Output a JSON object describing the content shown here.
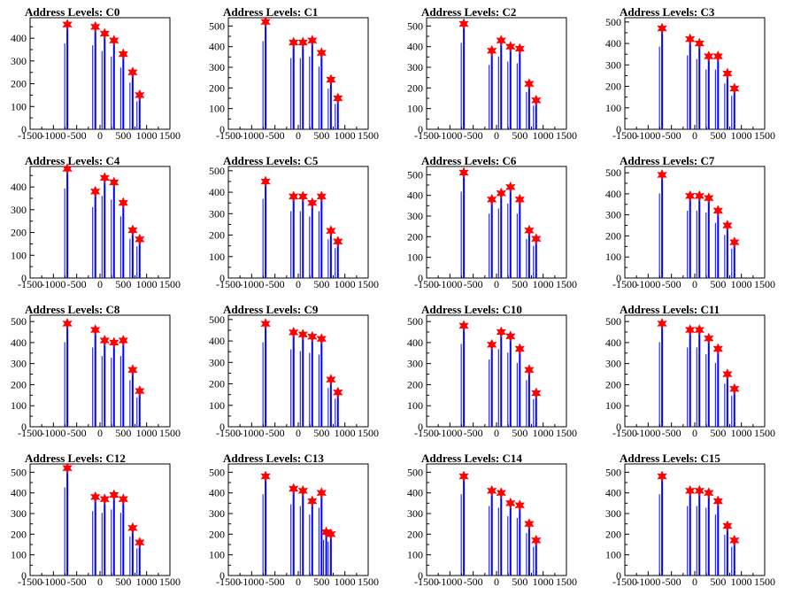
{
  "figure": {
    "background": "#ffffff"
  },
  "style": {
    "line_color": "#0000ff",
    "marker_color": "#ff0000",
    "axis_color": "#000000"
  },
  "chart_data": [
    {
      "type": "line",
      "title": "Address Levels: C0",
      "xlim": [
        -1500,
        1500
      ],
      "ylim": [
        0,
        490
      ],
      "xticks": [
        "-1500",
        "-1000",
        "-500",
        "0",
        "500",
        "1000",
        "1500"
      ],
      "yticks": [
        "0",
        "100",
        "200",
        "300",
        "400"
      ],
      "x": [
        -700,
        -100,
        100,
        300,
        500,
        700,
        850
      ],
      "line_values": [
        460,
        450,
        420,
        390,
        330,
        250,
        150
      ],
      "marker_values": [
        460,
        450,
        420,
        390,
        330,
        250,
        150
      ]
    },
    {
      "type": "line",
      "title": "Address Levels: C1",
      "xlim": [
        -1500,
        1500
      ],
      "ylim": [
        0,
        540
      ],
      "xticks": [
        "-1500",
        "-1000",
        "-500",
        "0",
        "500",
        "1000",
        "1500"
      ],
      "yticks": [
        "0",
        "100",
        "200",
        "300",
        "400",
        "500"
      ],
      "x": [
        -700,
        -100,
        100,
        300,
        500,
        700,
        850
      ],
      "line_values": [
        520,
        420,
        420,
        430,
        370,
        240,
        150
      ],
      "marker_values": [
        520,
        420,
        420,
        430,
        370,
        240,
        150
      ]
    },
    {
      "type": "line",
      "title": "Address Levels: C2",
      "xlim": [
        -1500,
        1500
      ],
      "ylim": [
        0,
        540
      ],
      "xticks": [
        "-1500",
        "-1000",
        "-500",
        "0",
        "500",
        "1000",
        "1500"
      ],
      "yticks": [
        "0",
        "100",
        "200",
        "300",
        "400",
        "500"
      ],
      "x": [
        -700,
        -100,
        100,
        300,
        500,
        700,
        850
      ],
      "line_values": [
        510,
        380,
        430,
        400,
        390,
        220,
        140
      ],
      "marker_values": [
        510,
        380,
        430,
        400,
        390,
        220,
        140
      ]
    },
    {
      "type": "line",
      "title": "Address Levels: C3",
      "xlim": [
        -1500,
        1500
      ],
      "ylim": [
        0,
        520
      ],
      "xticks": [
        "-1500",
        "-1000",
        "-500",
        "0",
        "500",
        "1000",
        "1500"
      ],
      "yticks": [
        "0",
        "100",
        "200",
        "300",
        "400",
        "500"
      ],
      "x": [
        -700,
        -100,
        100,
        300,
        500,
        700,
        850
      ],
      "line_values": [
        470,
        420,
        400,
        340,
        340,
        260,
        190
      ],
      "marker_values": [
        470,
        420,
        400,
        340,
        340,
        260,
        190
      ]
    },
    {
      "type": "line",
      "title": "Address Levels: C4",
      "xlim": [
        -1500,
        1500
      ],
      "ylim": [
        0,
        490
      ],
      "xticks": [
        "-1500",
        "-1000",
        "-500",
        "0",
        "500",
        "1000",
        "1500"
      ],
      "yticks": [
        "0",
        "100",
        "200",
        "300",
        "400"
      ],
      "x": [
        -700,
        -100,
        100,
        300,
        500,
        700,
        850
      ],
      "line_values": [
        480,
        380,
        440,
        420,
        330,
        210,
        170
      ],
      "marker_values": [
        480,
        380,
        440,
        420,
        330,
        210,
        170
      ]
    },
    {
      "type": "line",
      "title": "Address Levels: C5",
      "xlim": [
        -1500,
        1500
      ],
      "ylim": [
        0,
        520
      ],
      "xticks": [
        "-1500",
        "-1000",
        "-500",
        "0",
        "500",
        "1000",
        "1500"
      ],
      "yticks": [
        "0",
        "100",
        "200",
        "300",
        "400",
        "500"
      ],
      "x": [
        -700,
        -100,
        100,
        300,
        500,
        700,
        850
      ],
      "line_values": [
        450,
        380,
        380,
        350,
        380,
        220,
        170
      ],
      "marker_values": [
        450,
        380,
        380,
        350,
        380,
        220,
        170
      ]
    },
    {
      "type": "line",
      "title": "Address Levels: C6",
      "xlim": [
        -1500,
        1500
      ],
      "ylim": [
        0,
        540
      ],
      "xticks": [
        "-1500",
        "-1000",
        "-500",
        "0",
        "500",
        "1000",
        "1500"
      ],
      "yticks": [
        "0",
        "100",
        "200",
        "300",
        "400",
        "500"
      ],
      "x": [
        -700,
        -100,
        100,
        300,
        500,
        700,
        850
      ],
      "line_values": [
        510,
        380,
        410,
        440,
        380,
        230,
        190
      ],
      "marker_values": [
        510,
        380,
        410,
        440,
        380,
        230,
        190
      ]
    },
    {
      "type": "line",
      "title": "Address Levels: C7",
      "xlim": [
        -1500,
        1500
      ],
      "ylim": [
        0,
        530
      ],
      "xticks": [
        "-1500",
        "-1000",
        "-500",
        "0",
        "500",
        "1000",
        "1500"
      ],
      "yticks": [
        "0",
        "100",
        "200",
        "300",
        "400",
        "500"
      ],
      "x": [
        -700,
        -100,
        100,
        300,
        500,
        700,
        850
      ],
      "line_values": [
        490,
        390,
        390,
        380,
        320,
        250,
        170
      ],
      "marker_values": [
        490,
        390,
        390,
        380,
        320,
        250,
        170
      ]
    },
    {
      "type": "line",
      "title": "Address Levels: C8",
      "xlim": [
        -1500,
        1500
      ],
      "ylim": [
        0,
        530
      ],
      "xticks": [
        "-1500",
        "-1000",
        "-500",
        "0",
        "500",
        "1000",
        "1500"
      ],
      "yticks": [
        "0",
        "100",
        "200",
        "300",
        "400",
        "500"
      ],
      "x": [
        -700,
        -100,
        100,
        300,
        500,
        700,
        850
      ],
      "line_values": [
        490,
        460,
        410,
        400,
        410,
        270,
        170
      ],
      "marker_values": [
        490,
        460,
        410,
        400,
        410,
        270,
        170
      ]
    },
    {
      "type": "line",
      "title": "Address Levels: C9",
      "xlim": [
        -1500,
        1500
      ],
      "ylim": [
        0,
        520
      ],
      "xticks": [
        "-1500",
        "-1000",
        "-500",
        "0",
        "500",
        "1000",
        "1500"
      ],
      "yticks": [
        "0",
        "100",
        "200",
        "300",
        "400",
        "500"
      ],
      "x": [
        -700,
        -100,
        100,
        300,
        500,
        700,
        850
      ],
      "line_values": [
        480,
        440,
        430,
        420,
        410,
        220,
        160
      ],
      "marker_values": [
        480,
        440,
        430,
        420,
        410,
        220,
        160
      ]
    },
    {
      "type": "line",
      "title": "Address Levels: C10",
      "xlim": [
        -1500,
        1500
      ],
      "ylim": [
        0,
        530
      ],
      "xticks": [
        "-1500",
        "-1000",
        "-500",
        "0",
        "500",
        "1000",
        "1500"
      ],
      "yticks": [
        "0",
        "100",
        "200",
        "300",
        "400",
        "500"
      ],
      "x": [
        -700,
        -100,
        100,
        300,
        500,
        700,
        850
      ],
      "line_values": [
        480,
        390,
        450,
        430,
        370,
        270,
        160
      ],
      "marker_values": [
        480,
        390,
        450,
        430,
        370,
        270,
        160
      ]
    },
    {
      "type": "line",
      "title": "Address Levels: C11",
      "xlim": [
        -1500,
        1500
      ],
      "ylim": [
        0,
        530
      ],
      "xticks": [
        "-1500",
        "-1000",
        "-500",
        "0",
        "500",
        "1000",
        "1500"
      ],
      "yticks": [
        "0",
        "100",
        "200",
        "300",
        "400",
        "500"
      ],
      "x": [
        -700,
        -100,
        100,
        300,
        500,
        700,
        850
      ],
      "line_values": [
        490,
        460,
        460,
        420,
        370,
        250,
        180
      ],
      "marker_values": [
        490,
        460,
        460,
        420,
        370,
        250,
        180
      ]
    },
    {
      "type": "line",
      "title": "Address Levels: C12",
      "xlim": [
        -1500,
        1500
      ],
      "ylim": [
        0,
        540
      ],
      "xticks": [
        "-1500",
        "-1000",
        "-500",
        "0",
        "500",
        "1000",
        "1500"
      ],
      "yticks": [
        "0",
        "100",
        "200",
        "300",
        "400",
        "500"
      ],
      "x": [
        -700,
        -100,
        100,
        300,
        500,
        700,
        850
      ],
      "line_values": [
        520,
        380,
        370,
        390,
        370,
        230,
        160
      ],
      "marker_values": [
        520,
        380,
        370,
        390,
        370,
        230,
        160
      ]
    },
    {
      "type": "line",
      "title": "Address Levels: C13",
      "xlim": [
        -1500,
        1500
      ],
      "ylim": [
        0,
        540
      ],
      "xticks": [
        "-1500",
        "-1000",
        "-500",
        "0",
        "500",
        "1000",
        "1500"
      ],
      "yticks": [
        "0",
        "100",
        "200",
        "300",
        "400",
        "500"
      ],
      "x": [
        -700,
        -100,
        100,
        300,
        500,
        600,
        700
      ],
      "line_values": [
        480,
        420,
        410,
        360,
        400,
        210,
        200
      ],
      "marker_values": [
        480,
        420,
        410,
        360,
        400,
        210,
        200
      ]
    },
    {
      "type": "line",
      "title": "Address Levels: C14",
      "xlim": [
        -1500,
        1500
      ],
      "ylim": [
        0,
        540
      ],
      "xticks": [
        "-1500",
        "-1000",
        "-500",
        "0",
        "500",
        "1000",
        "1500"
      ],
      "yticks": [
        "0",
        "100",
        "200",
        "300",
        "400",
        "500"
      ],
      "x": [
        -700,
        -100,
        100,
        300,
        500,
        700,
        850
      ],
      "line_values": [
        480,
        410,
        400,
        350,
        340,
        250,
        170
      ],
      "marker_values": [
        480,
        410,
        400,
        350,
        340,
        250,
        170
      ]
    },
    {
      "type": "line",
      "title": "Address Levels: C15",
      "xlim": [
        -1500,
        1500
      ],
      "ylim": [
        0,
        540
      ],
      "xticks": [
        "-1500",
        "-1000",
        "-500",
        "0",
        "500",
        "1000",
        "1500"
      ],
      "yticks": [
        "0",
        "100",
        "200",
        "300",
        "400",
        "500"
      ],
      "x": [
        -700,
        -100,
        100,
        300,
        500,
        700,
        850
      ],
      "line_values": [
        480,
        410,
        410,
        400,
        360,
        240,
        170
      ],
      "marker_values": [
        480,
        410,
        410,
        400,
        360,
        240,
        170
      ]
    }
  ]
}
